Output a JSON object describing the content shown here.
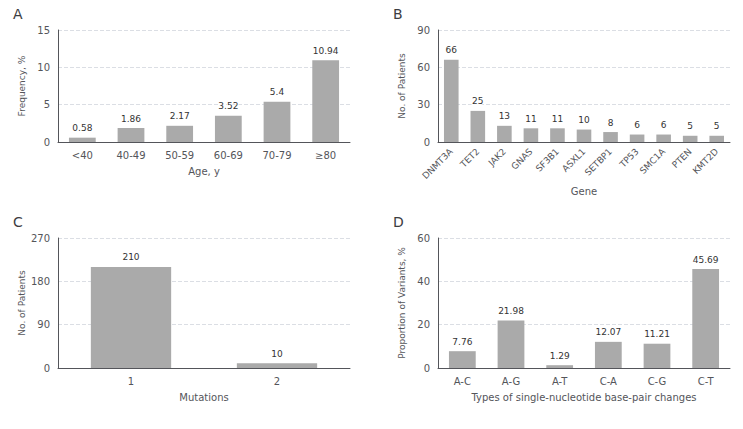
{
  "chart_data": [
    {
      "type": "bar",
      "title": "A",
      "categories": [
        "<40",
        "40-49",
        "50-59",
        "60-69",
        "70-79",
        "≥80"
      ],
      "values": [
        0.58,
        1.86,
        2.17,
        3.52,
        5.4,
        10.94
      ],
      "color": "#aaaaaa",
      "xlabel": "Age, y",
      "ylabel": "Frequency, %",
      "ylim": [
        0,
        15
      ],
      "yticks": [
        0,
        5,
        10,
        15
      ],
      "grid": true,
      "data_labels": true
    },
    {
      "type": "bar",
      "title": "B",
      "categories": [
        "DNMT3A",
        "TET2",
        "JAK2",
        "GNAS",
        "SF3B1",
        "ASXL1",
        "SETBP1",
        "TP53",
        "SMC1A",
        "PTEN",
        "KMT2D"
      ],
      "values": [
        66,
        25,
        13,
        11,
        11,
        10,
        8,
        6,
        6,
        5,
        5
      ],
      "color": "#aaaaaa",
      "xlabel": "Gene",
      "ylabel": "No. of Patients",
      "ylim": [
        0,
        90
      ],
      "yticks": [
        0,
        30,
        60,
        90
      ],
      "grid": true,
      "data_labels": true
    },
    {
      "type": "bar",
      "title": "C",
      "categories": [
        "1",
        "2"
      ],
      "values": [
        210,
        10
      ],
      "color": "#aaaaaa",
      "xlabel": "Mutations",
      "ylabel": "No. of Patients",
      "ylim": [
        0,
        270
      ],
      "yticks": [
        0,
        90,
        180,
        270
      ],
      "grid": true,
      "data_labels": true
    },
    {
      "type": "bar",
      "title": "D",
      "categories": [
        "A-C",
        "A-G",
        "A-T",
        "C-A",
        "C-G",
        "C-T"
      ],
      "values": [
        7.76,
        21.98,
        1.29,
        12.07,
        11.21,
        45.69
      ],
      "color": "#aaaaaa",
      "xlabel": "Types of single-nucleotide base-pair changes",
      "ylabel": "Proportion of Variants, %",
      "ylim": [
        0,
        60
      ],
      "yticks": [
        0,
        20,
        40,
        60
      ],
      "grid": true,
      "data_labels": true
    }
  ]
}
